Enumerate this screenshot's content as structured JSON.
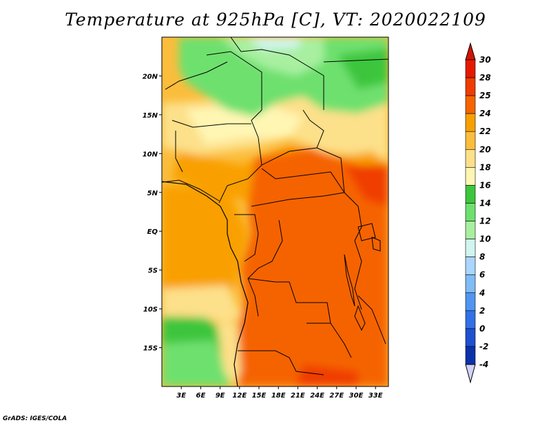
{
  "title": "Temperature at 925hPa [C], VT: 2020022109",
  "footer": "GrADS: IGES/COLA",
  "map": {
    "lon_range": [
      0,
      35
    ],
    "lat_range": [
      -20,
      25
    ],
    "lon_ticks": [
      "3E",
      "6E",
      "9E",
      "12E",
      "15E",
      "18E",
      "21E",
      "24E",
      "27E",
      "30E",
      "33E"
    ],
    "lon_tick_values": [
      3,
      6,
      9,
      12,
      15,
      18,
      21,
      24,
      27,
      30,
      33
    ],
    "lat_ticks": [
      "20N",
      "15N",
      "10N",
      "5N",
      "EQ",
      "5S",
      "10S",
      "15S"
    ],
    "lat_tick_values": [
      20,
      15,
      10,
      5,
      0,
      -5,
      -10,
      -15
    ]
  },
  "colorbar": {
    "labels": [
      "30",
      "28",
      "25",
      "24",
      "22",
      "20",
      "18",
      "16",
      "14",
      "12",
      "10",
      "8",
      "6",
      "4",
      "2",
      "0",
      "-2",
      "-4"
    ],
    "colors": [
      "#e41a00",
      "#f03c00",
      "#f56400",
      "#f9a000",
      "#fbbd3c",
      "#fde08a",
      "#fff6b4",
      "#3cc63c",
      "#6ee06e",
      "#a8f0a0",
      "#d2f5f0",
      "#aad6ff",
      "#80bcf5",
      "#5096f0",
      "#3270e6",
      "#1e50d0",
      "#0c32aa",
      "#080a6a"
    ],
    "tip_colors": {
      "top": "#d21400",
      "bottom": "#d2d2fa"
    }
  }
}
